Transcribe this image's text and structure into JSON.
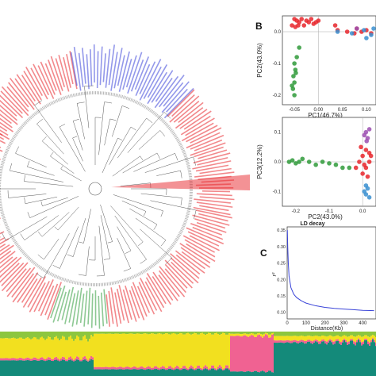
{
  "figure": {
    "panel_b_letter": "B",
    "panel_c_letter": "C",
    "tree_clades": [
      {
        "name": "red-upper",
        "color": "#e8262b"
      },
      {
        "name": "blue",
        "color": "#3a44d8"
      },
      {
        "name": "red-right",
        "color": "#e8262b"
      },
      {
        "name": "red-lower",
        "color": "#e8262b"
      },
      {
        "name": "green",
        "color": "#2f9a3a"
      },
      {
        "name": "purple",
        "color": "#9b4fb0"
      }
    ],
    "structure_colors": [
      "#8cc63f",
      "#f2e01f",
      "#f06292",
      "#148a7a"
    ]
  },
  "chart_data": [
    {
      "type": "scatter",
      "xlabel": "PC1(46.7%)",
      "ylabel": "PC2(43.0%)",
      "x_ticks": [
        "-0.05",
        "0.00",
        "0.05",
        "0.10"
      ],
      "y_ticks": [
        "0.0",
        "-0.1",
        "-0.2"
      ],
      "xlim": [
        -0.075,
        0.12
      ],
      "ylim": [
        -0.23,
        0.05
      ],
      "groups": [
        {
          "color": "#e8262b",
          "points": [
            [
              -0.05,
              0.04
            ],
            [
              -0.045,
              0.035
            ],
            [
              -0.04,
              0.03
            ],
            [
              -0.035,
              0.04
            ],
            [
              -0.03,
              0.02
            ],
            [
              -0.025,
              0.035
            ],
            [
              -0.02,
              0.03
            ],
            [
              -0.015,
              0.04
            ],
            [
              -0.01,
              0.025
            ],
            [
              -0.005,
              0.03
            ],
            [
              0.0,
              0.035
            ],
            [
              -0.048,
              0.015
            ],
            [
              -0.042,
              0.02
            ],
            [
              0.035,
              0.02
            ],
            [
              0.04,
              0.005
            ],
            [
              0.06,
              0.0
            ],
            [
              0.075,
              -0.005
            ],
            [
              0.09,
              0.0
            ],
            [
              0.1,
              0.005
            ],
            [
              0.11,
              -0.005
            ],
            [
              0.08,
              0.01
            ],
            [
              -0.055,
              0.02
            ]
          ]
        },
        {
          "color": "#3a8fd0",
          "points": [
            [
              0.04,
              0.0
            ],
            [
              0.07,
              -0.005
            ],
            [
              0.095,
              0.005
            ],
            [
              0.11,
              -0.01
            ],
            [
              0.1,
              -0.02
            ],
            [
              0.115,
              0.01
            ]
          ]
        },
        {
          "color": "#2f9a3a",
          "points": [
            [
              -0.05,
              -0.1
            ],
            [
              -0.048,
              -0.12
            ],
            [
              -0.052,
              -0.14
            ],
            [
              -0.05,
              -0.16
            ],
            [
              -0.053,
              -0.18
            ],
            [
              -0.05,
              -0.2
            ],
            [
              -0.047,
              -0.13
            ],
            [
              -0.045,
              -0.08
            ],
            [
              -0.04,
              -0.05
            ],
            [
              -0.055,
              -0.17
            ]
          ]
        },
        {
          "color": "#9b4fb0",
          "points": [
            [
              0.08,
              0.01
            ]
          ]
        }
      ]
    },
    {
      "type": "scatter",
      "xlabel": "PC2(43.0%)",
      "ylabel": "PC3(12.2%)",
      "x_ticks": [
        "-0.2",
        "-0.1",
        "0.0"
      ],
      "y_ticks": [
        "0.1",
        "0.0",
        "-0.1"
      ],
      "xlim": [
        -0.24,
        0.04
      ],
      "ylim": [
        -0.15,
        0.15
      ],
      "groups": [
        {
          "color": "#2f9a3a",
          "points": [
            [
              -0.22,
              0.0
            ],
            [
              -0.21,
              0.005
            ],
            [
              -0.2,
              -0.005
            ],
            [
              -0.19,
              0.0
            ],
            [
              -0.18,
              0.01
            ],
            [
              -0.16,
              0.0
            ],
            [
              -0.14,
              -0.01
            ],
            [
              -0.12,
              0.0
            ],
            [
              -0.1,
              -0.005
            ],
            [
              -0.08,
              -0.01
            ],
            [
              -0.06,
              -0.02
            ],
            [
              -0.04,
              -0.02
            ]
          ]
        },
        {
          "color": "#e8262b",
          "points": [
            [
              -0.02,
              -0.02
            ],
            [
              -0.01,
              0.0
            ],
            [
              0.0,
              0.02
            ],
            [
              0.005,
              -0.01
            ],
            [
              0.01,
              0.04
            ],
            [
              0.0,
              -0.04
            ],
            [
              0.01,
              -0.02
            ],
            [
              0.02,
              0.03
            ],
            [
              -0.005,
              0.05
            ],
            [
              0.02,
              0.0
            ],
            [
              0.015,
              -0.05
            ],
            [
              0.025,
              0.02
            ]
          ]
        },
        {
          "color": "#9b4fb0",
          "points": [
            [
              0.005,
              0.09
            ],
            [
              0.01,
              0.1
            ],
            [
              0.015,
              0.08
            ],
            [
              0.02,
              0.11
            ],
            [
              0.012,
              0.07
            ]
          ]
        },
        {
          "color": "#3a8fd0",
          "points": [
            [
              0.005,
              -0.1
            ],
            [
              0.01,
              -0.11
            ],
            [
              0.015,
              -0.09
            ],
            [
              0.02,
              -0.12
            ],
            [
              0.01,
              -0.08
            ]
          ]
        }
      ]
    },
    {
      "type": "line",
      "title": "LD decay",
      "xlabel": "Distance(Kb)",
      "ylabel": "r²",
      "x_ticks": [
        "0",
        "100",
        "200",
        "300",
        "400"
      ],
      "y_ticks": [
        "0.35",
        "0.30",
        "0.25",
        "0.20",
        "0.15",
        "0.10"
      ],
      "xlim": [
        0,
        470
      ],
      "ylim": [
        0.08,
        0.36
      ],
      "x": [
        1,
        3,
        6,
        10,
        20,
        35,
        50,
        75,
        100,
        150,
        200,
        250,
        300,
        350,
        400,
        460
      ],
      "y": [
        0.35,
        0.3,
        0.25,
        0.21,
        0.175,
        0.155,
        0.145,
        0.135,
        0.128,
        0.12,
        0.115,
        0.112,
        0.11,
        0.108,
        0.106,
        0.105
      ],
      "line_color": "#3a44d8"
    }
  ]
}
